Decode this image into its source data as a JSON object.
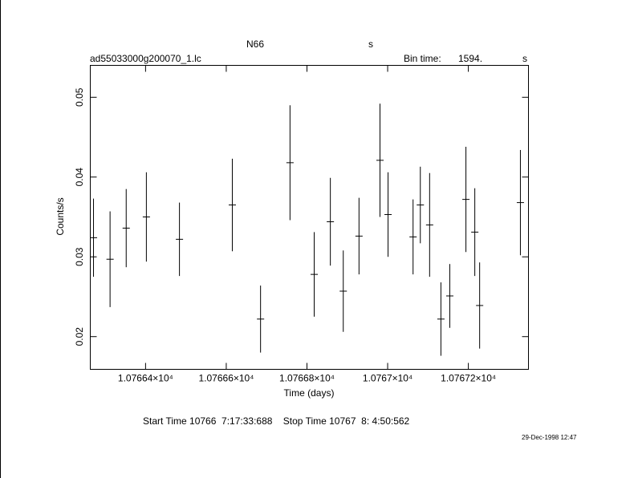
{
  "chart_data": {
    "type": "errorbar",
    "title": "N66",
    "title_unit": "s",
    "subtitle": "ad55033000g200070_1.lc",
    "bin_time_label": "Bin time:",
    "bin_time": "1594.",
    "bin_time_unit": "s",
    "xlabel": "Time (days)",
    "ylabel": "Counts/s",
    "footer": "Start Time 10766  7:17:33:688    Stop Time 10767  8: 4:50:562",
    "date": "29-Dec-1998 12:47",
    "xlim": [
      10766.263,
      10767.349
    ],
    "ylim": [
      0.0159,
      0.054
    ],
    "xticks": [
      {
        "value": 10766.4,
        "label": "1.07664×10⁴"
      },
      {
        "value": 10766.6,
        "label": "1.07666×10⁴"
      },
      {
        "value": 10766.8,
        "label": "1.07668×10⁴"
      },
      {
        "value": 10767.0,
        "label": "1.0767×10⁴"
      },
      {
        "value": 10767.2,
        "label": "1.07672×10⁴"
      }
    ],
    "yticks": [
      0.02,
      0.03,
      0.04,
      0.05
    ],
    "series": [
      {
        "color": "#000000",
        "x": [
          10766.271,
          10766.312,
          10766.352,
          10766.402,
          10766.484,
          10766.615,
          10766.685,
          10766.758,
          10766.818,
          10766.858,
          10766.89,
          10766.929,
          10766.981,
          10767.001,
          10767.063,
          10767.081,
          10767.104,
          10767.132,
          10767.154,
          10767.194,
          10767.216,
          10767.228,
          10767.329
        ],
        "values": [
          0.0324,
          0.0297,
          0.0336,
          0.035,
          0.0322,
          0.0365,
          0.0222,
          0.0418,
          0.0278,
          0.0344,
          0.0257,
          0.0326,
          0.0421,
          0.0353,
          0.0325,
          0.0365,
          0.034,
          0.0222,
          0.0251,
          0.0372,
          0.0331,
          0.0239,
          0.0368
        ],
        "errors": [
          0.0049,
          0.006,
          0.0049,
          0.0056,
          0.0046,
          0.0058,
          0.0042,
          0.0072,
          0.0053,
          0.0055,
          0.0051,
          0.0048,
          0.0071,
          0.0053,
          0.0047,
          0.0048,
          0.0065,
          0.0046,
          0.004,
          0.0066,
          0.0055,
          0.0054,
          0.0066
        ]
      }
    ]
  }
}
